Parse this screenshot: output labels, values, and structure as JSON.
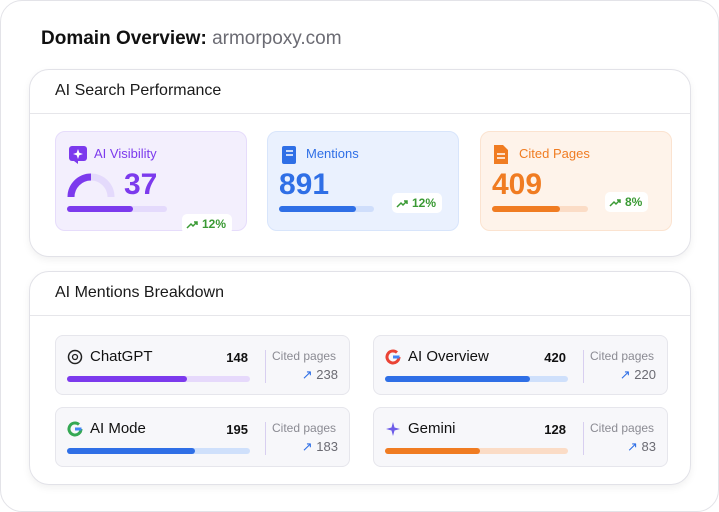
{
  "header": {
    "title": "Domain Overview:",
    "domain": "armorpoxy.com"
  },
  "performance": {
    "title": "AI Search Performance",
    "metrics": [
      {
        "label": "AI Visibility",
        "value": 37,
        "change": "12%"
      },
      {
        "label": "Mentions",
        "value": 891,
        "change": "12%"
      },
      {
        "label": "Cited Pages",
        "value": 409,
        "change": "8%"
      }
    ]
  },
  "breakdown": {
    "title": "AI Mentions Breakdown",
    "cited_label": "Cited pages",
    "sources": [
      {
        "name": "ChatGPT",
        "mentions": 148,
        "cited": 238
      },
      {
        "name": "AI Overview",
        "mentions": 420,
        "cited": 220
      },
      {
        "name": "AI Mode",
        "mentions": 195,
        "cited": 183
      },
      {
        "name": "Gemini",
        "mentions": 128,
        "cited": 83
      }
    ]
  }
}
